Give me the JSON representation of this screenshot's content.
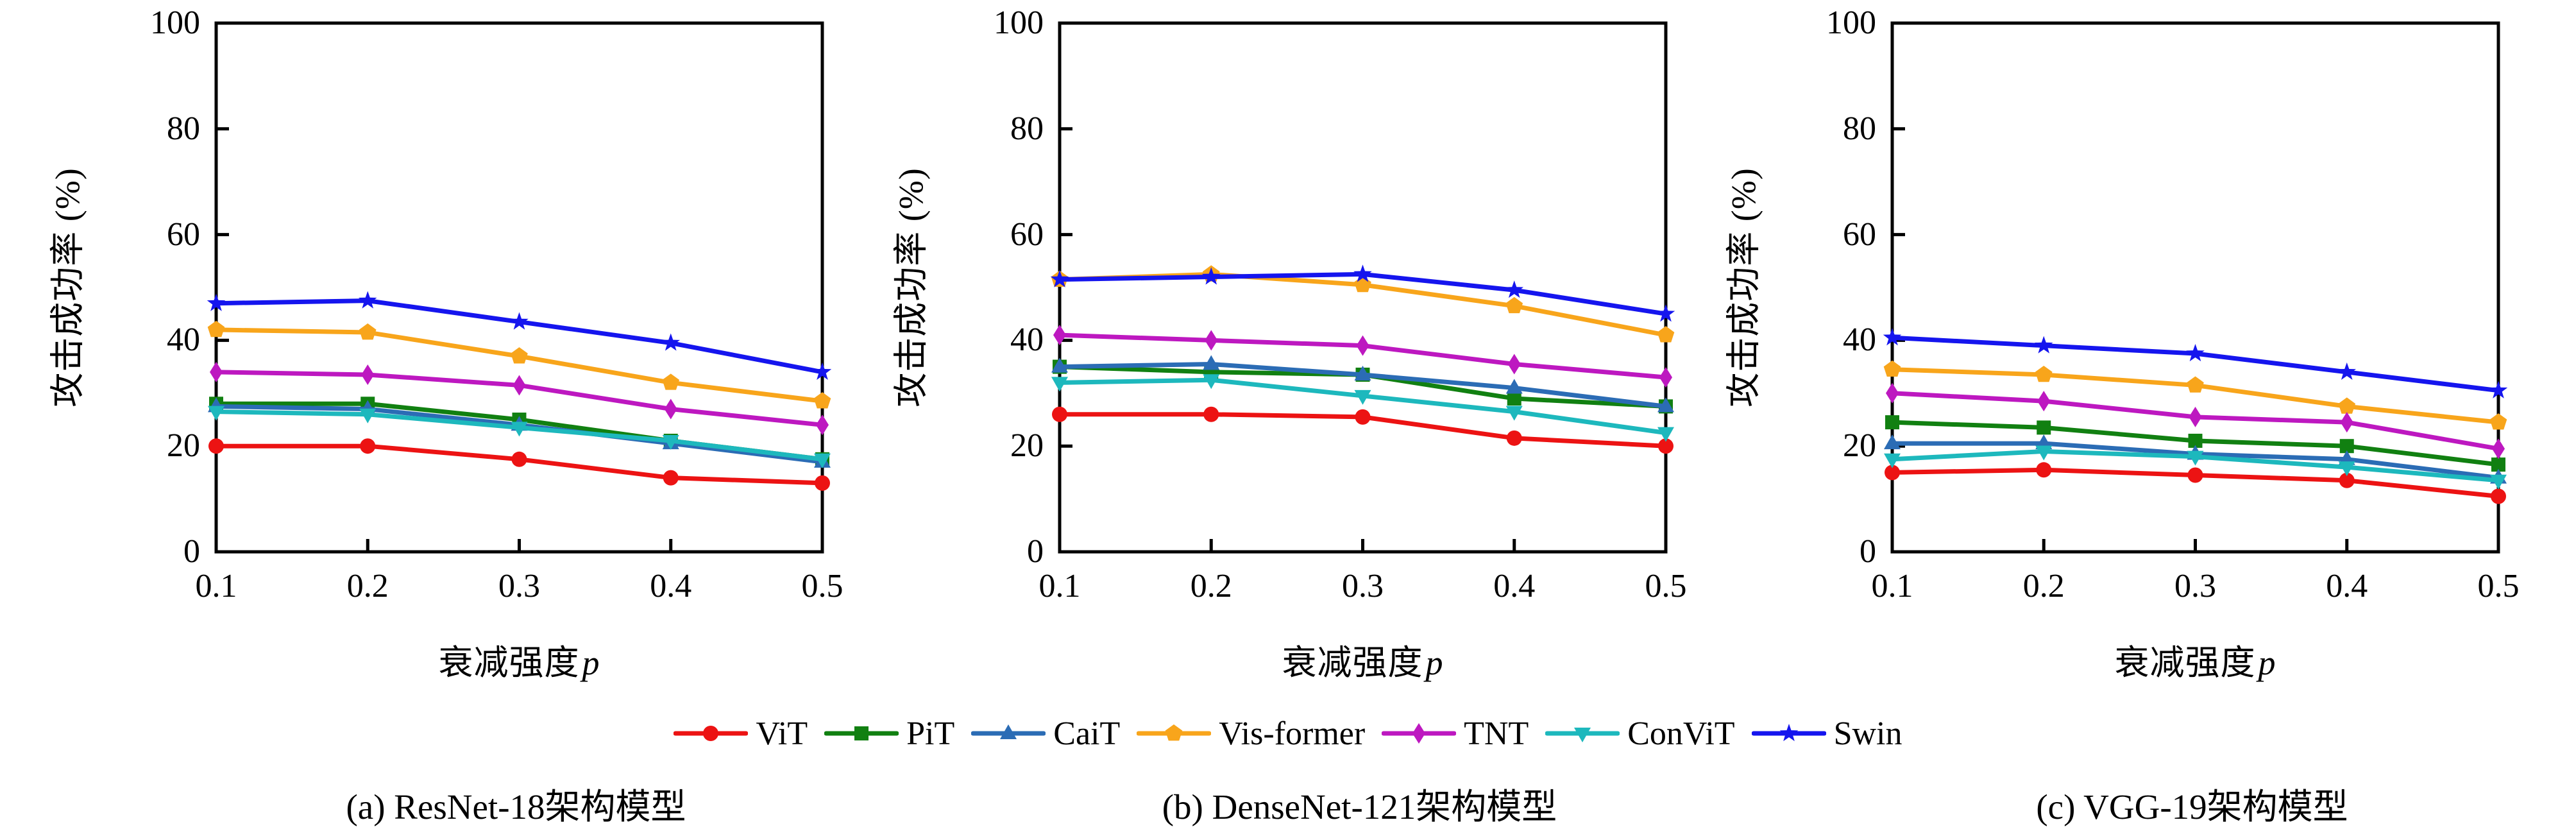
{
  "figure": {
    "y_axis_label": "攻击成功率 (%)",
    "x_axis_label_text": "衰减强度",
    "x_axis_label_var": "p",
    "x_tick_labels": [
      "0.1",
      "0.2",
      "0.3",
      "0.4",
      "0.5"
    ],
    "x_tick_values": [
      0.1,
      0.2,
      0.3,
      0.4,
      0.5
    ],
    "y_tick_labels": [
      "0",
      "20",
      "40",
      "60",
      "80",
      "100"
    ],
    "y_tick_values": [
      0,
      20,
      40,
      60,
      80,
      100
    ],
    "xlim": [
      0.1,
      0.5
    ],
    "ylim": [
      0,
      100
    ],
    "grid": false,
    "legend_position": "bottom-center"
  },
  "legend": {
    "items": [
      {
        "label": "ViT",
        "color": "#ec1313",
        "marker": "circle",
        "marker_name": "circle-marker-icon"
      },
      {
        "label": "PiT",
        "color": "#118011",
        "marker": "square",
        "marker_name": "square-marker-icon"
      },
      {
        "label": "CaiT",
        "color": "#2b6cb5",
        "marker": "triangle-up",
        "marker_name": "triangle-up-marker-icon"
      },
      {
        "label": "Vis-former",
        "color": "#f8a51b",
        "marker": "pentagon",
        "marker_name": "pentagon-marker-icon"
      },
      {
        "label": "TNT",
        "color": "#bd18c0",
        "marker": "diamond",
        "marker_name": "diamond-marker-icon"
      },
      {
        "label": "ConViT",
        "color": "#1db8bd",
        "marker": "triangle-down",
        "marker_name": "triangle-down-marker-icon"
      },
      {
        "label": "Swin",
        "color": "#1515ee",
        "marker": "star",
        "marker_name": "star-marker-icon"
      }
    ]
  },
  "chart_data": [
    {
      "type": "line",
      "caption": "(a) ResNet-18架构模型",
      "xlabel": "衰减强度p",
      "ylabel": "攻击成功率 (%)",
      "x": [
        0.1,
        0.2,
        0.3,
        0.4,
        0.5
      ],
      "ylim": [
        0,
        100
      ],
      "series": [
        {
          "name": "ViT",
          "values": [
            20.0,
            20.0,
            17.5,
            14.0,
            13.0
          ]
        },
        {
          "name": "PiT",
          "values": [
            28.0,
            28.0,
            25.0,
            21.0,
            17.5
          ]
        },
        {
          "name": "CaiT",
          "values": [
            27.5,
            27.0,
            24.0,
            20.5,
            17.0
          ]
        },
        {
          "name": "Vis-former",
          "values": [
            42.0,
            41.5,
            37.0,
            32.0,
            28.5
          ]
        },
        {
          "name": "TNT",
          "values": [
            34.0,
            33.5,
            31.5,
            27.0,
            24.0
          ]
        },
        {
          "name": "ConViT",
          "values": [
            26.5,
            26.0,
            23.5,
            21.0,
            17.5
          ]
        },
        {
          "name": "Swin",
          "values": [
            47.0,
            47.5,
            43.5,
            39.5,
            34.0
          ]
        }
      ]
    },
    {
      "type": "line",
      "caption": "(b) DenseNet-121架构模型",
      "xlabel": "衰减强度p",
      "ylabel": "攻击成功率 (%)",
      "x": [
        0.1,
        0.2,
        0.3,
        0.4,
        0.5
      ],
      "ylim": [
        0,
        100
      ],
      "series": [
        {
          "name": "ViT",
          "values": [
            26.0,
            26.0,
            25.5,
            21.5,
            20.0
          ]
        },
        {
          "name": "PiT",
          "values": [
            35.0,
            34.0,
            33.5,
            29.0,
            27.5
          ]
        },
        {
          "name": "CaiT",
          "values": [
            35.0,
            35.5,
            33.5,
            31.0,
            27.5
          ]
        },
        {
          "name": "Vis-former",
          "values": [
            51.5,
            52.5,
            50.5,
            46.5,
            41.0
          ]
        },
        {
          "name": "TNT",
          "values": [
            41.0,
            40.0,
            39.0,
            35.5,
            33.0
          ]
        },
        {
          "name": "ConViT",
          "values": [
            32.0,
            32.5,
            29.5,
            26.5,
            22.5
          ]
        },
        {
          "name": "Swin",
          "values": [
            51.5,
            52.0,
            52.5,
            49.5,
            45.0
          ]
        }
      ]
    },
    {
      "type": "line",
      "caption": "(c) VGG-19架构模型",
      "xlabel": "衰减强度p",
      "ylabel": "攻击成功率 (%)",
      "x": [
        0.1,
        0.2,
        0.3,
        0.4,
        0.5
      ],
      "ylim": [
        0,
        100
      ],
      "series": [
        {
          "name": "ViT",
          "values": [
            15.0,
            15.5,
            14.5,
            13.5,
            10.5
          ]
        },
        {
          "name": "PiT",
          "values": [
            24.5,
            23.5,
            21.0,
            20.0,
            16.5
          ]
        },
        {
          "name": "CaiT",
          "values": [
            20.5,
            20.5,
            18.5,
            17.5,
            14.0
          ]
        },
        {
          "name": "Vis-former",
          "values": [
            34.5,
            33.5,
            31.5,
            27.5,
            24.5
          ]
        },
        {
          "name": "TNT",
          "values": [
            30.0,
            28.5,
            25.5,
            24.5,
            19.5
          ]
        },
        {
          "name": "ConViT",
          "values": [
            17.5,
            19.0,
            18.0,
            16.0,
            13.5
          ]
        },
        {
          "name": "Swin",
          "values": [
            40.5,
            39.0,
            37.5,
            34.0,
            30.5
          ]
        }
      ]
    }
  ]
}
